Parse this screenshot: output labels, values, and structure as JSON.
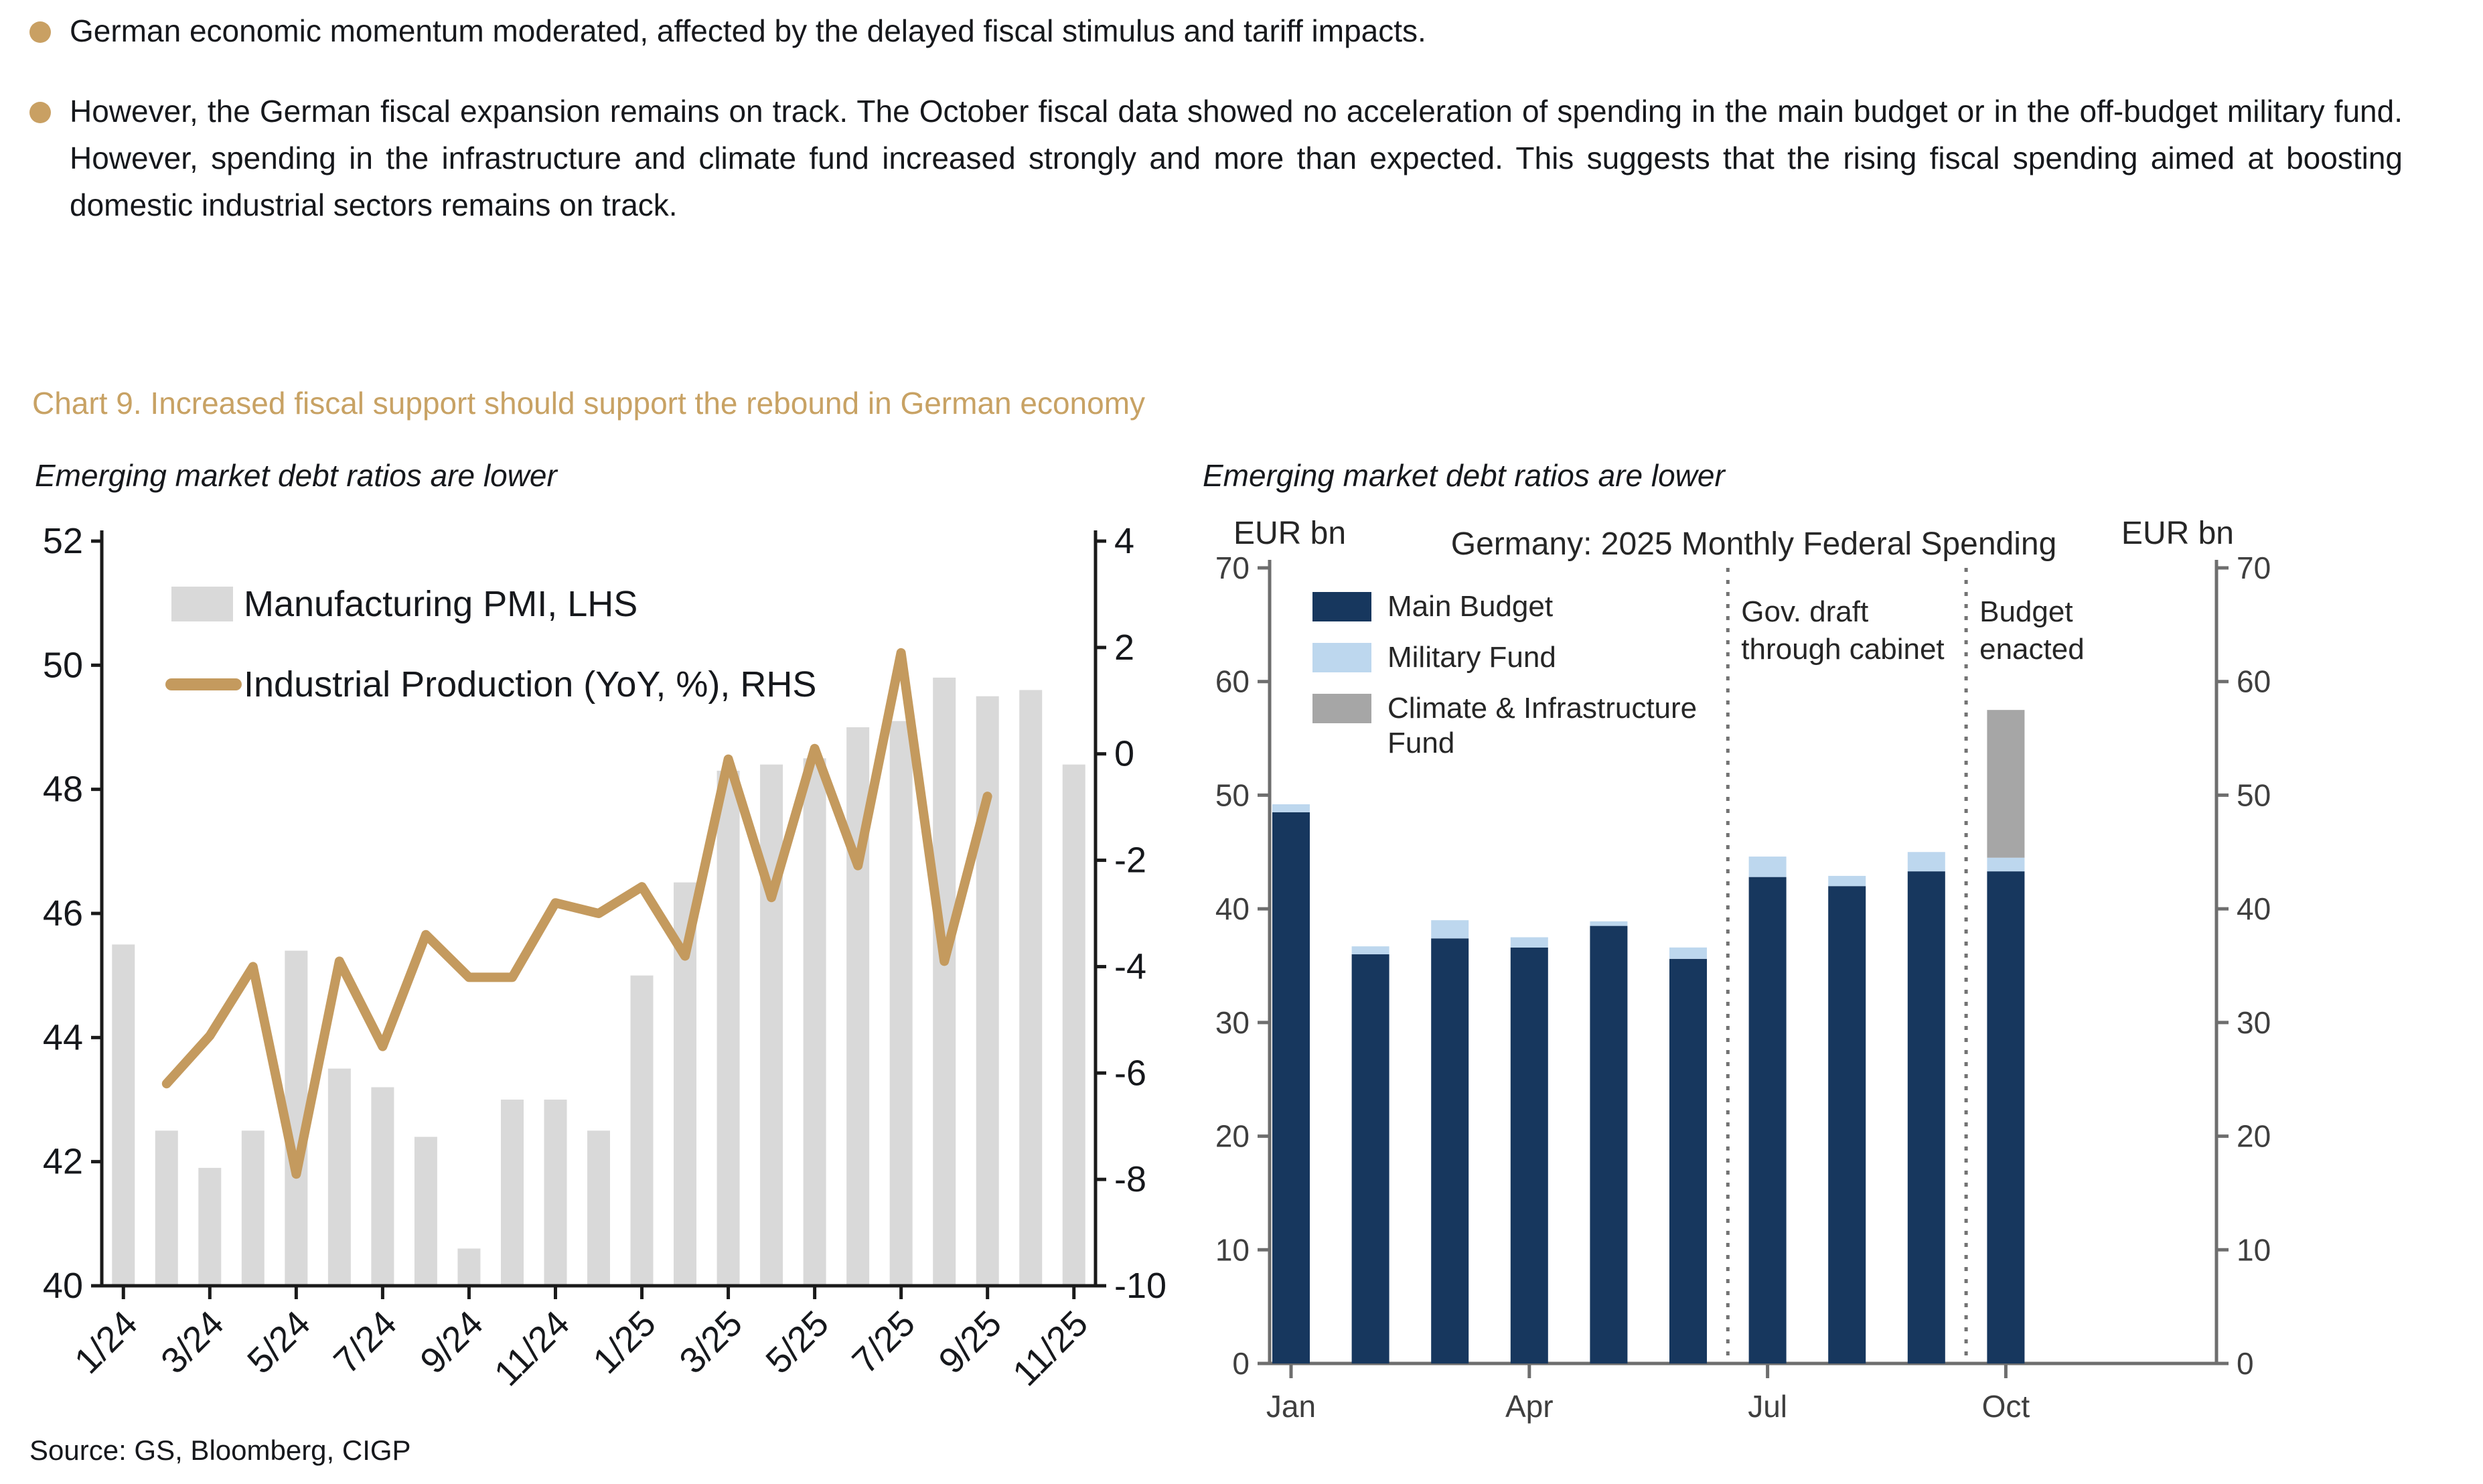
{
  "page": {
    "bullets": [
      "German economic momentum moderated, affected by the delayed fiscal stimulus and tariff impacts.",
      "However, the German fiscal expansion remains on track. The October fiscal data showed no acceleration of spending in the main budget or in the off-budget military fund. However, spending in the infrastructure and climate fund increased strongly and more than expected. This suggests that the rising fiscal spending aimed at boosting domestic industrial sectors remains on track."
    ],
    "chart_section_title": "Chart 9. Increased fiscal support should support the rebound in German economy",
    "source": "Source: GS, Bloomberg, CIGP",
    "colors": {
      "bullet_gold": "#C9A063",
      "section_title_tan": "#C8A264",
      "line_gold": "#C49A5E",
      "pmi_bar_gray": "#D9D9D9",
      "main_budget_navy": "#17375E",
      "military_light_blue": "#BDD7EE",
      "climate_gray": "#A6A6A6"
    }
  },
  "chart_data": [
    {
      "type": "bar+line",
      "subtitle": "Emerging market debt ratios are lower",
      "categories": [
        "1/24",
        "2/24",
        "3/24",
        "4/24",
        "5/24",
        "6/24",
        "7/24",
        "8/24",
        "9/24",
        "10/24",
        "11/24",
        "12/24",
        "1/25",
        "2/25",
        "3/25",
        "4/25",
        "5/25",
        "6/25",
        "7/25",
        "8/25",
        "9/25",
        "10/25",
        "11/25"
      ],
      "x_tick_labels": [
        "1/24",
        "3/24",
        "5/24",
        "7/24",
        "9/24",
        "11/24",
        "1/25",
        "3/25",
        "5/25",
        "7/25",
        "9/25",
        "11/25"
      ],
      "left_axis": {
        "min": 40,
        "max": 52,
        "step": 2
      },
      "right_axis": {
        "min": -10,
        "max": 4,
        "step": 2
      },
      "grid": false,
      "legend_position": "top-left-inside",
      "series": [
        {
          "name": "Manufacturing PMI, LHS",
          "type": "bar",
          "axis": "left",
          "color": "#D9D9D9",
          "values": [
            45.5,
            42.5,
            41.9,
            42.5,
            45.4,
            43.5,
            43.2,
            42.4,
            40.6,
            43.0,
            43.0,
            42.5,
            45.0,
            46.5,
            48.3,
            48.4,
            48.5,
            49.0,
            49.1,
            49.8,
            49.5,
            49.6,
            48.4
          ]
        },
        {
          "name": "Industrial Production (YoY, %), RHS",
          "type": "line",
          "axis": "right",
          "color": "#C49A5E",
          "start_index": 1,
          "values": [
            -6.2,
            -5.3,
            -4.0,
            -7.9,
            -3.9,
            -5.5,
            -3.4,
            -4.2,
            -4.2,
            -2.8,
            -3.0,
            -2.5,
            -3.8,
            -0.1,
            -2.7,
            0.1,
            -2.1,
            1.9,
            -3.9,
            -0.8
          ]
        }
      ]
    },
    {
      "type": "stacked-bar",
      "subtitle": "Emerging market debt ratios are lower",
      "title": "Germany: 2025 Monthly Federal Spending",
      "left_axis_label": "EUR bn",
      "right_axis_label": "EUR bn",
      "y_axis": {
        "min": 0,
        "max": 70,
        "step": 10
      },
      "categories": [
        "Jan",
        "Feb",
        "Mar",
        "Apr",
        "May",
        "Jun",
        "Jul",
        "Aug",
        "Sep",
        "Oct"
      ],
      "x_slots": 12,
      "x_tick_labels": [
        "Jan",
        "Apr",
        "Jul",
        "Oct"
      ],
      "grid": false,
      "legend_position": "top-left-inside",
      "series": [
        {
          "name": "Main Budget",
          "color": "#17375E",
          "values": [
            48.5,
            36.0,
            37.4,
            36.6,
            38.5,
            35.6,
            42.8,
            42.0,
            43.3,
            43.3
          ]
        },
        {
          "name": "Military Fund",
          "color": "#BDD7EE",
          "values": [
            0.7,
            0.7,
            1.6,
            0.9,
            0.4,
            1.0,
            1.8,
            0.9,
            1.7,
            1.2
          ]
        },
        {
          "name": "Climate & Infrastructure Fund",
          "color": "#A6A6A6",
          "values": [
            0,
            0,
            0,
            0,
            0,
            0,
            0,
            0,
            0,
            13.0
          ]
        }
      ],
      "annotations": [
        {
          "lines": [
            "Gov. draft",
            "through cabinet"
          ],
          "after_category": "Jun"
        },
        {
          "lines": [
            "Budget",
            "enacted"
          ],
          "after_category": "Sep"
        }
      ]
    }
  ]
}
